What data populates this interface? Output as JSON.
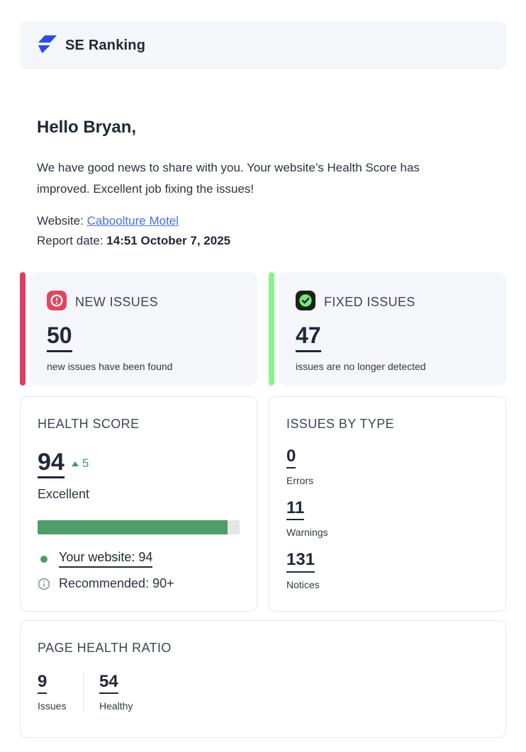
{
  "header": {
    "brand": "SE Ranking",
    "logo_color": "#2a4be8"
  },
  "intro": {
    "greeting": "Hello Bryan,",
    "message": "We have good news to share with you. Your website’s Health Score has improved. Excellent job fixing the issues!"
  },
  "meta": {
    "website_label": "Website:",
    "website_name": "Caboolture Motel",
    "report_label": "Report date:",
    "report_value": "14:51 October 7, 2025"
  },
  "new_issues": {
    "title": "NEW ISSUES",
    "count": "50",
    "caption": "new issues have been found",
    "accent_color": "#df3d63",
    "icon_color": "#e2455f"
  },
  "fixed_issues": {
    "title": "FIXED ISSUES",
    "count": "47",
    "caption": "issues are no longer detected",
    "accent_color": "#8ef08c",
    "icon_color": "#182418"
  },
  "health_score": {
    "title": "HEALTH SCORE",
    "score": "94",
    "delta": "5",
    "status": "Excellent",
    "progress_percent": 94,
    "bar_color": "#4f9d69",
    "your_website": "Your website: 94",
    "recommended": "Recommended: 90+"
  },
  "issues_by_type": {
    "title": "ISSUES BY TYPE",
    "items": [
      {
        "count": "0",
        "label": "Errors"
      },
      {
        "count": "11",
        "label": "Warnings"
      },
      {
        "count": "131",
        "label": "Notices"
      }
    ]
  },
  "page_health_ratio": {
    "title": "PAGE HEALTH RATIO",
    "items": [
      {
        "count": "9",
        "label": "Issues"
      },
      {
        "count": "54",
        "label": "Healthy"
      }
    ]
  }
}
